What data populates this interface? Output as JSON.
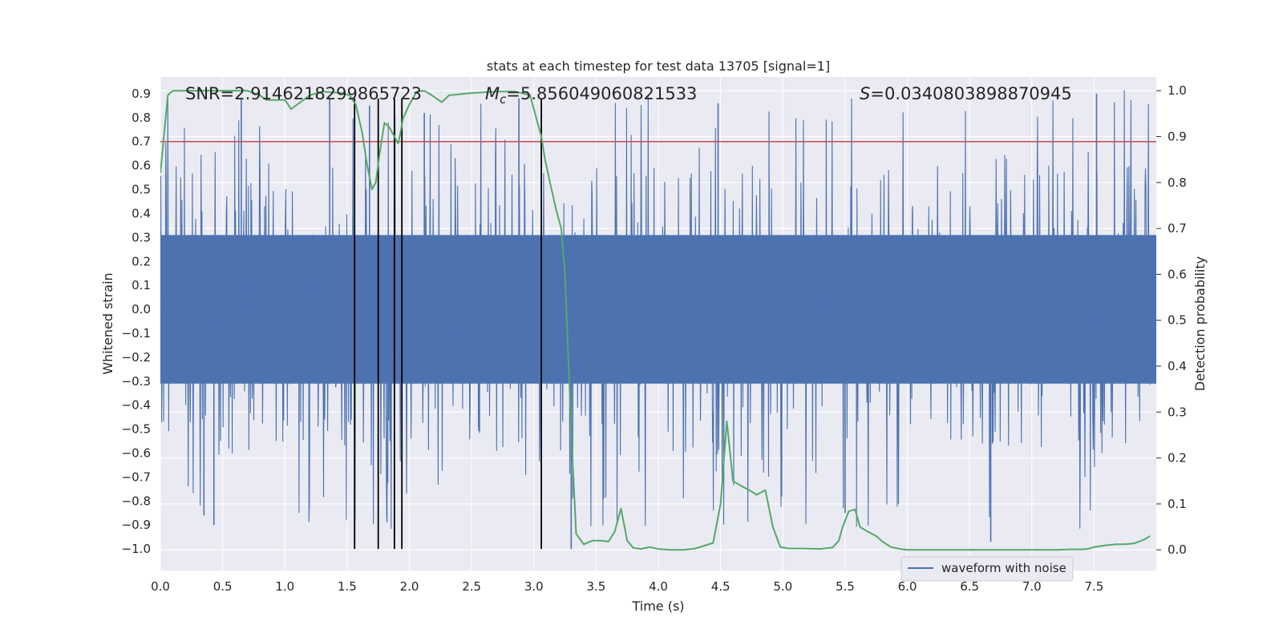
{
  "chart_data": {
    "type": "line",
    "title": "stats at each timestep for test data 13705 [signal=1]",
    "xlabel": "Time (s)",
    "ylabel_left": "Whitened strain",
    "ylabel_right": "Detection probability",
    "xlim": [
      0.0,
      8.0
    ],
    "ylim_left": [
      -1.09,
      0.97
    ],
    "ylim_right": [
      -0.045,
      1.03
    ],
    "x_ticks": [
      "0.0",
      "0.5",
      "1.0",
      "1.5",
      "2.0",
      "2.5",
      "3.0",
      "3.5",
      "4.0",
      "4.5",
      "5.0",
      "5.5",
      "6.0",
      "6.5",
      "7.0",
      "7.5"
    ],
    "x_tick_values": [
      0,
      0.5,
      1,
      1.5,
      2,
      2.5,
      3,
      3.5,
      4,
      4.5,
      5,
      5.5,
      6,
      6.5,
      7,
      7.5
    ],
    "y_left_ticks": [
      "0.9",
      "0.8",
      "0.7",
      "0.6",
      "0.5",
      "0.4",
      "0.3",
      "0.2",
      "0.1",
      "0.0",
      "−0.1",
      "−0.2",
      "−0.3",
      "−0.4",
      "−0.5",
      "−0.6",
      "−0.7",
      "−0.8",
      "−0.9",
      "−1.0"
    ],
    "y_left_tick_values": [
      0.9,
      0.8,
      0.7,
      0.6,
      0.5,
      0.4,
      0.3,
      0.2,
      0.1,
      0.0,
      -0.1,
      -0.2,
      -0.3,
      -0.4,
      -0.5,
      -0.6,
      -0.7,
      -0.8,
      -0.9,
      -1.0
    ],
    "y_right_ticks": [
      "1.0",
      "0.9",
      "0.8",
      "0.7",
      "0.6",
      "0.5",
      "0.4",
      "0.3",
      "0.2",
      "0.1",
      "0.0"
    ],
    "y_right_tick_values": [
      1.0,
      0.9,
      0.8,
      0.7,
      0.6,
      0.5,
      0.4,
      0.3,
      0.2,
      0.1,
      0.0
    ],
    "annotations": {
      "snr": "SNR=2.9146218299865723",
      "mc_symbol": "M",
      "mc_sub": "c",
      "mc_value": "=5.856049060821533",
      "s_symbol": "S",
      "s_value": "=0.0340803898870945"
    },
    "threshold": {
      "value": 0.7,
      "color": "#c44e52"
    },
    "vertical_markers": [
      1.56,
      1.75,
      1.88,
      1.94,
      3.06
    ],
    "legend": {
      "label": "waveform with noise",
      "position": "lower-right"
    },
    "series": [
      {
        "name": "waveform with noise",
        "axis": "left",
        "color": "#4c72b0",
        "description": "whitened strain noise, roughly |x|<0.3 dense core with spikes to ±0.9, sampled at high rate over 0–8 s",
        "core_amplitude": 0.31,
        "spike_amplitude_range": [
          0.4,
          0.92
        ],
        "highlighted_spikes": [
          {
            "x": 0.43,
            "y": -0.9
          },
          {
            "x": 0.35,
            "y": -0.86
          },
          {
            "x": 0.65,
            "y": 0.88
          },
          {
            "x": 1.36,
            "y": 0.88
          },
          {
            "x": 1.68,
            "y": 0.85
          },
          {
            "x": 2.12,
            "y": 0.82
          },
          {
            "x": 2.88,
            "y": 0.88
          },
          {
            "x": 3.3,
            "y": -1.0
          },
          {
            "x": 4.48,
            "y": 0.86
          },
          {
            "x": 5.5,
            "y": -0.85
          },
          {
            "x": 6.67,
            "y": -0.97
          },
          {
            "x": 7.52,
            "y": 0.9
          }
        ]
      },
      {
        "name": "detection probability",
        "axis": "right",
        "color": "#55a868",
        "x": [
          0.0,
          0.06,
          0.1,
          0.2,
          0.3,
          0.5,
          0.7,
          0.8,
          0.85,
          0.9,
          1.0,
          1.05,
          1.1,
          1.2,
          1.3,
          1.45,
          1.52,
          1.57,
          1.62,
          1.66,
          1.7,
          1.73,
          1.76,
          1.8,
          1.84,
          1.88,
          1.91,
          1.93,
          1.95,
          2.0,
          2.06,
          2.12,
          2.18,
          2.26,
          2.32,
          2.5,
          2.7,
          2.85,
          2.97,
          3.0,
          3.03,
          3.06,
          3.09,
          3.13,
          3.18,
          3.22,
          3.25,
          3.28,
          3.31,
          3.34,
          3.4,
          3.47,
          3.54,
          3.6,
          3.65,
          3.7,
          3.75,
          3.8,
          3.86,
          3.93,
          4.0,
          4.1,
          4.2,
          4.3,
          4.38,
          4.44,
          4.5,
          4.55,
          4.6,
          4.66,
          4.73,
          4.79,
          4.86,
          4.92,
          4.98,
          5.05,
          5.15,
          5.3,
          5.4,
          5.45,
          5.48,
          5.53,
          5.58,
          5.62,
          5.68,
          5.75,
          5.8,
          5.87,
          5.94,
          6.0,
          6.2,
          6.5,
          6.8,
          7.0,
          7.2,
          7.3,
          7.4,
          7.45,
          7.5,
          7.6,
          7.68,
          7.75,
          7.82,
          7.86,
          7.9,
          7.95
        ],
        "y": [
          0.82,
          0.99,
          1.0,
          1.0,
          1.0,
          1.0,
          1.0,
          0.99,
          0.98,
          0.98,
          0.98,
          0.96,
          0.97,
          0.99,
          0.998,
          0.995,
          0.99,
          0.97,
          0.91,
          0.84,
          0.785,
          0.8,
          0.86,
          0.93,
          0.92,
          0.9,
          0.885,
          0.91,
          0.94,
          0.97,
          0.998,
          1.0,
          0.99,
          0.975,
          0.99,
          0.995,
          0.998,
          0.998,
          0.99,
          0.96,
          0.93,
          0.9,
          0.85,
          0.8,
          0.74,
          0.7,
          0.6,
          0.4,
          0.2,
          0.035,
          0.012,
          0.02,
          0.02,
          0.018,
          0.04,
          0.09,
          0.02,
          0.004,
          0.002,
          0.006,
          0.002,
          0.0,
          0.0,
          0.003,
          0.01,
          0.015,
          0.1,
          0.28,
          0.15,
          0.14,
          0.13,
          0.12,
          0.13,
          0.05,
          0.006,
          0.003,
          0.003,
          0.002,
          0.005,
          0.02,
          0.05,
          0.084,
          0.088,
          0.05,
          0.04,
          0.03,
          0.018,
          0.006,
          0.002,
          0.0,
          0.0,
          0.0,
          0.0,
          0.0,
          0.0,
          0.001,
          0.001,
          0.002,
          0.006,
          0.01,
          0.012,
          0.012,
          0.014,
          0.018,
          0.022,
          0.03
        ]
      }
    ]
  }
}
